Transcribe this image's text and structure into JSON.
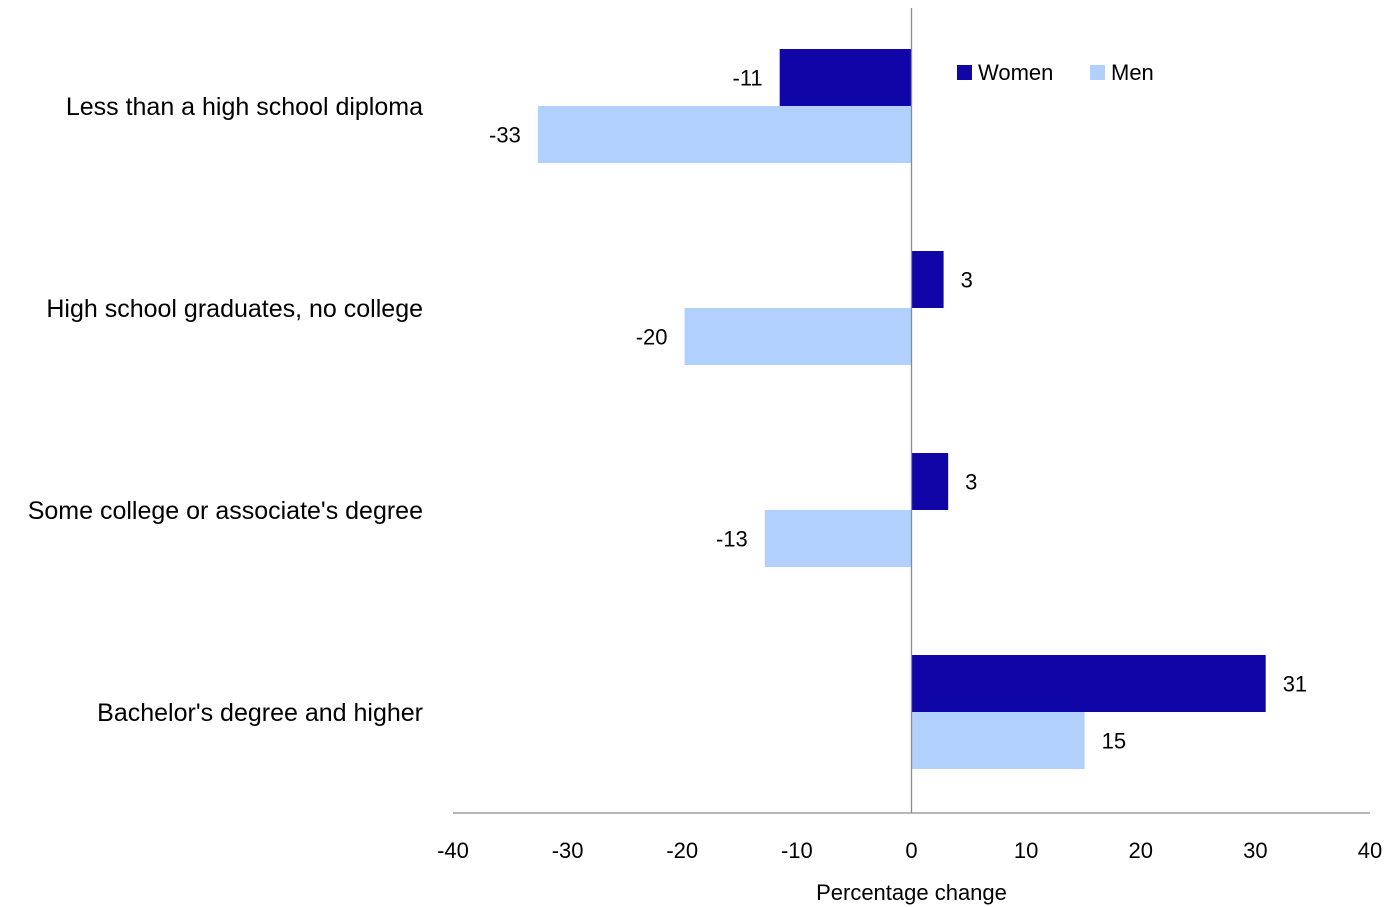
{
  "chart_data": {
    "type": "bar",
    "orientation": "horizontal",
    "categories": [
      "Less than a high school diploma",
      "High school graduates, no college",
      "Some college or associate's degree",
      "Bachelor's degree and higher"
    ],
    "series": [
      {
        "name": "Women",
        "color": "#1005A6",
        "values": [
          -11.5,
          2.8,
          3.2,
          30.9
        ],
        "labels": [
          "-11",
          "3",
          "3",
          "31"
        ]
      },
      {
        "name": "Men",
        "color": "#B1D1FC",
        "values": [
          -32.6,
          -19.8,
          -12.8,
          15.1
        ],
        "labels": [
          "-33",
          "-20",
          "-13",
          "15"
        ]
      }
    ],
    "xlabel": "Percentage change",
    "xlim": [
      -40,
      40
    ],
    "xticks": [
      -40,
      -30,
      -20,
      -10,
      0,
      10,
      20,
      30,
      40
    ],
    "legend_position": "top-right",
    "grid": false
  }
}
